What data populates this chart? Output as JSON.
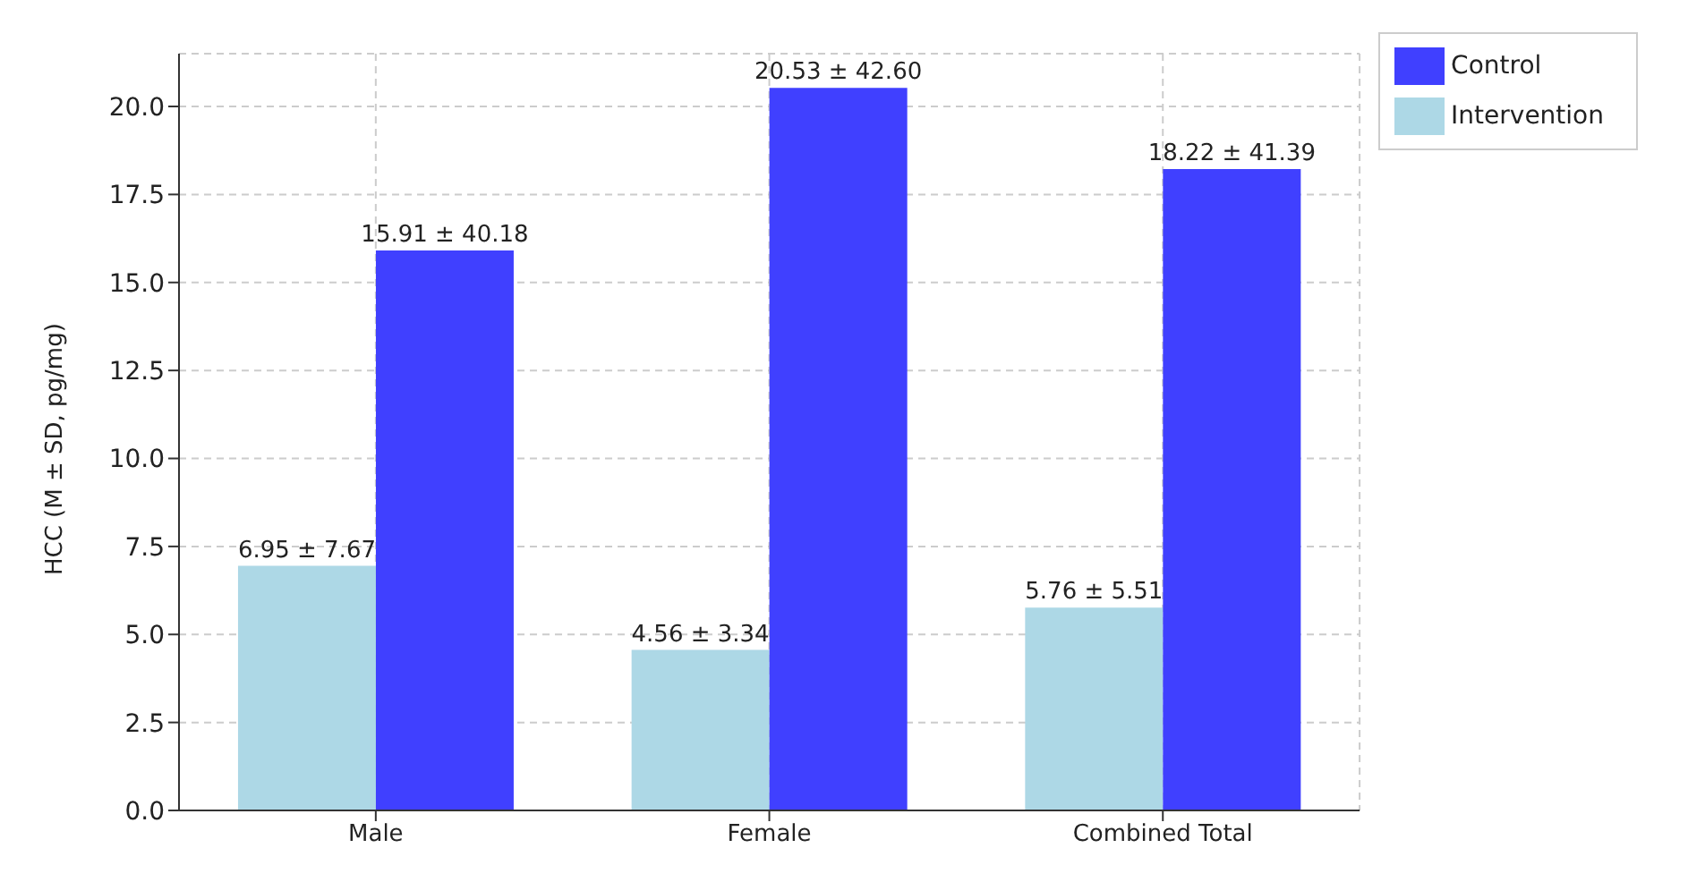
{
  "chart_data": {
    "type": "bar",
    "ylabel": "HCC (M ± SD, pg/mg)",
    "categories": [
      "Male",
      "Female",
      "Combined Total"
    ],
    "series": [
      {
        "name": "Intervention",
        "color": "#add8e6",
        "values": [
          6.95,
          4.56,
          5.76
        ],
        "value_labels": [
          "6.95 ± 7.67",
          "4.56 ± 3.34",
          "5.76 ± 5.51"
        ]
      },
      {
        "name": "Control",
        "color": "#4040ff",
        "values": [
          15.91,
          20.53,
          18.22
        ],
        "value_labels": [
          "15.91 ± 40.18",
          "20.53 ± 42.60",
          "18.22 ± 41.39"
        ]
      }
    ],
    "ylim": [
      0,
      21.5
    ],
    "yticks": [
      {
        "value": 0,
        "label": "0.0"
      },
      {
        "value": 2.5,
        "label": "2.5"
      },
      {
        "value": 5,
        "label": "5.0"
      },
      {
        "value": 7.5,
        "label": "7.5"
      },
      {
        "value": 10,
        "label": "10.0"
      },
      {
        "value": 12.5,
        "label": "12.5"
      },
      {
        "value": 15,
        "label": "15.0"
      },
      {
        "value": 17.5,
        "label": "17.5"
      },
      {
        "value": 20,
        "label": "20.0"
      }
    ],
    "grid": true,
    "legend": "top right"
  }
}
